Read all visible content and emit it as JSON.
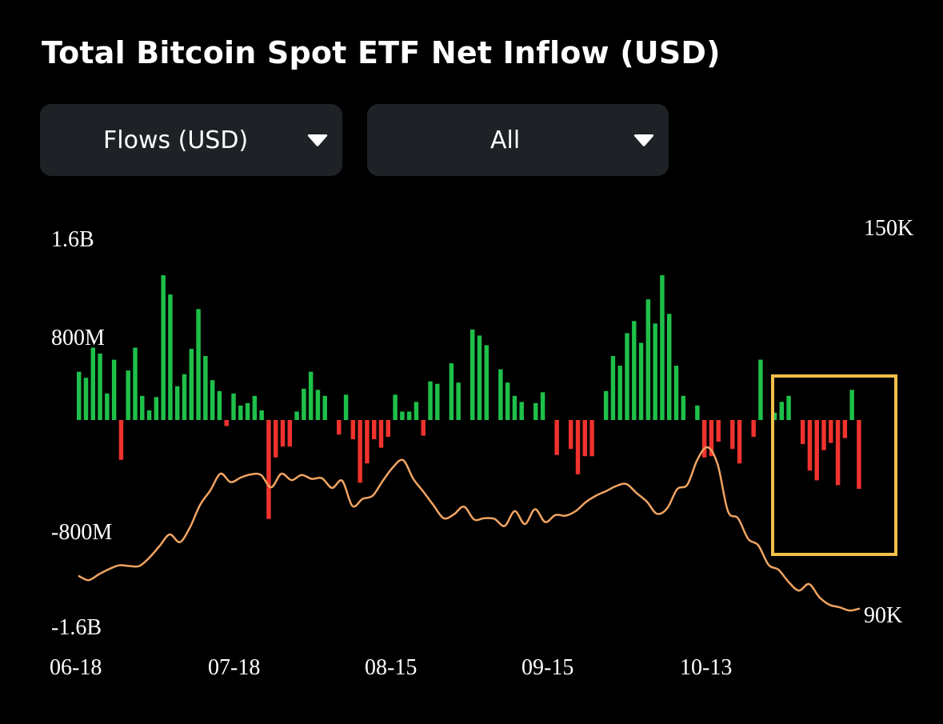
{
  "title": "Total Bitcoin Spot ETF Net Inflow (USD)",
  "dropdowns": [
    {
      "value": "Flows (USD)",
      "icon": "caret-down-icon"
    },
    {
      "value": "All",
      "icon": "caret-down-icon"
    }
  ],
  "chart_data": {
    "type": "bar",
    "title": "Total Bitcoin Spot ETF Net Inflow (USD)",
    "left_axis": {
      "ticks": [
        "1.6B",
        "800M",
        "-800M",
        "-1.6B"
      ],
      "range": [
        -1600000000,
        1600000000
      ]
    },
    "right_axis": {
      "ticks": [
        "150K",
        "90K"
      ],
      "range": [
        90000,
        150000
      ]
    },
    "x_tick_labels": [
      "06-18",
      "07-18",
      "08-15",
      "09-15",
      "10-13"
    ],
    "colors": {
      "positive": "#1fc04a",
      "negative": "#f0322e",
      "line": "#f0a462",
      "highlight": "#f2c04a"
    },
    "grid": false,
    "legend": "none",
    "flows_usd_millions": [
      400,
      0,
      350,
      600,
      550,
      220,
      500,
      0,
      -330,
      0,
      410,
      600,
      0,
      200,
      80,
      0,
      190,
      1200,
      1040,
      280,
      380,
      590,
      920,
      530,
      330,
      0,
      0,
      0,
      0,
      0,
      0,
      0,
      0,
      0,
      -50,
      220,
      120,
      0,
      140,
      200,
      80,
      -820,
      -310,
      -220,
      -220,
      0,
      70,
      260,
      0,
      400,
      250,
      0,
      200,
      0,
      0,
      0,
      0,
      0,
      0,
      0,
      -520,
      -360,
      0,
      -160,
      -230,
      -140,
      0,
      210,
      70,
      70,
      150,
      0,
      -130,
      0,
      320,
      300,
      0,
      0,
      0,
      0,
      0,
      0,
      0,
      0,
      0,
      0,
      0,
      0,
      0,
      0,
      0,
      0,
      0,
      0,
      0,
      0,
      0,
      0,
      0,
      0,
      0,
      0,
      0,
      0,
      0,
      0,
      0,
      0,
      0,
      0,
      0,
      0,
      0,
      0,
      0,
      0,
      0,
      0,
      0,
      0,
      0,
      0,
      0,
      0,
      0,
      0,
      0,
      0,
      0,
      0,
      0,
      0,
      0,
      0,
      0,
      0,
      0,
      0,
      0,
      0,
      0,
      0,
      0,
      0,
      0,
      0,
      0,
      0,
      0,
      0,
      0,
      0,
      0,
      0,
      0,
      0,
      0,
      0,
      0,
      0,
      0,
      0,
      0,
      0,
      0,
      0,
      0,
      0,
      0,
      0,
      0,
      0,
      0,
      0,
      0,
      0,
      0,
      0,
      0,
      0
    ],
    "flows": [
      400,
      350,
      600,
      550,
      220,
      500,
      -330,
      410,
      600,
      200,
      80,
      190,
      1200,
      1040,
      280,
      380,
      590,
      920,
      530,
      330,
      240,
      -50,
      220,
      120,
      140,
      200,
      80,
      -820,
      -310,
      -220,
      -220,
      70,
      260,
      400,
      250,
      200,
      0,
      -120,
      210,
      -160,
      -520,
      -360,
      -160,
      -230,
      -140,
      210,
      70,
      70,
      150,
      -130,
      320,
      300,
      0,
      470,
      310,
      0,
      750,
      700,
      620,
      0,
      420,
      310,
      200,
      150,
      0,
      140,
      230,
      0,
      -290,
      0,
      -240,
      -450,
      -300,
      -300,
      0,
      240,
      530,
      450,
      720,
      820,
      640,
      1000,
      800,
      1200,
      880,
      450,
      200,
      0,
      120,
      -310,
      -300,
      -180,
      0,
      -240,
      -360,
      0,
      -140,
      500,
      0,
      60,
      150,
      200,
      0,
      -200,
      -420,
      -500,
      -250,
      -190,
      -540,
      -150,
      250,
      -570
    ],
    "btc_price_usd": [
      96000,
      95300,
      96200,
      97000,
      97600,
      97500,
      97500,
      98800,
      100600,
      102400,
      101200,
      103500,
      107000,
      109200,
      111800,
      110500,
      111200,
      111700,
      111600,
      109700,
      111800,
      110800,
      111600,
      111000,
      111100,
      109600,
      110700,
      106800,
      107900,
      108400,
      110700,
      112800,
      113900,
      111000,
      109000,
      106900,
      104900,
      105500,
      106700,
      104700,
      104900,
      104800,
      103700,
      106000,
      104000,
      106300,
      104300,
      105400,
      105300,
      106000,
      107400,
      108400,
      109100,
      109900,
      110200,
      108800,
      107500,
      105600,
      106400,
      109400,
      110100,
      114000,
      115900,
      113200,
      106000,
      104900,
      101700,
      100700,
      97700,
      96900,
      95000,
      93700,
      94700,
      92700,
      91500,
      91100,
      90600,
      90900
    ]
  }
}
